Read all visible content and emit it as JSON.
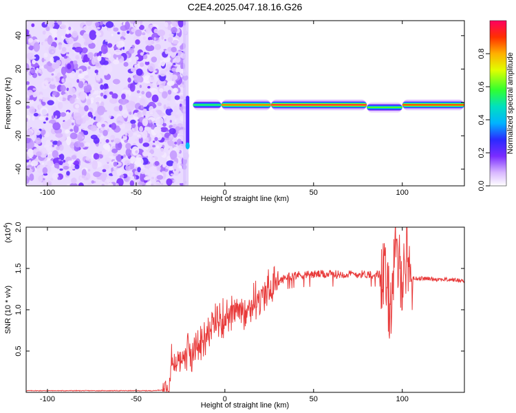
{
  "title": "C2E4.2025.047.18.16.G26",
  "chart_data": [
    {
      "type": "heatmap",
      "xlabel": "Height of straight line (km)",
      "ylabel": "Frequency (Hz)",
      "xlim": [
        -112,
        135
      ],
      "ylim": [
        -50,
        49
      ],
      "xticks": [
        "-100",
        "-50",
        "0",
        "50",
        "100"
      ],
      "yticks": [
        "-40",
        "-20",
        "0",
        "20",
        "40"
      ],
      "colorbar": {
        "label": "Normalized spectral amplitude",
        "range": [
          0,
          1
        ],
        "ticks": [
          "0.0",
          "0.2",
          "0.4",
          "0.6",
          "0.8"
        ]
      },
      "noise_region_end_km": -22,
      "signal_line": {
        "frequency_hz": -1.5,
        "x_start_km": -18,
        "x_end_km": 135,
        "peak_amplitude": 0.95,
        "segments": [
          {
            "x": [
              -18,
              -2
            ],
            "amplitude": 0.55
          },
          {
            "x": [
              -2,
              26
            ],
            "amplitude": 0.85
          },
          {
            "x": [
              26,
              80
            ],
            "amplitude": 0.95
          },
          {
            "x": [
              80,
              100
            ],
            "amplitude": 0.6,
            "frequency_hz": -3
          },
          {
            "x": [
              100,
              135
            ],
            "amplitude": 0.9
          }
        ]
      },
      "spike": {
        "x_km": -21,
        "frequency_range_hz": [
          -28,
          4
        ]
      }
    },
    {
      "type": "line",
      "xlabel": "Height of straight line (km)",
      "ylabel": "SNR (10 * v/v)",
      "multiplier": "(x10",
      "multiplier_exp": "4",
      "multiplier_close": ")",
      "xlim": [
        -112,
        135
      ],
      "ylim": [
        0,
        20000
      ],
      "xticks": [
        "-100",
        "-50",
        "0",
        "50",
        "100"
      ],
      "yticks": [
        "0.5",
        "1.0",
        "1.5",
        "2.0"
      ],
      "color": "#e83a3a",
      "series": [
        {
          "x": [
            -112,
            -60,
            -40,
            -35,
            -32,
            -30,
            -25,
            -20,
            -15,
            -10,
            -5,
            0,
            5,
            10,
            15,
            20,
            25,
            30,
            35,
            40,
            50,
            60,
            70,
            80,
            85,
            90,
            93,
            96,
            100,
            103,
            105,
            110,
            120,
            130,
            135
          ],
          "y": [
            200,
            200,
            200,
            300,
            1500,
            3500,
            4200,
            4800,
            5600,
            7000,
            8500,
            9000,
            9600,
            10000,
            10700,
            11600,
            12500,
            13300,
            14000,
            14200,
            14300,
            14300,
            14300,
            14300,
            14300,
            14300,
            10000,
            16500,
            14000,
            17000,
            13800,
            13800,
            13700,
            13600,
            13500
          ]
        }
      ]
    }
  ]
}
